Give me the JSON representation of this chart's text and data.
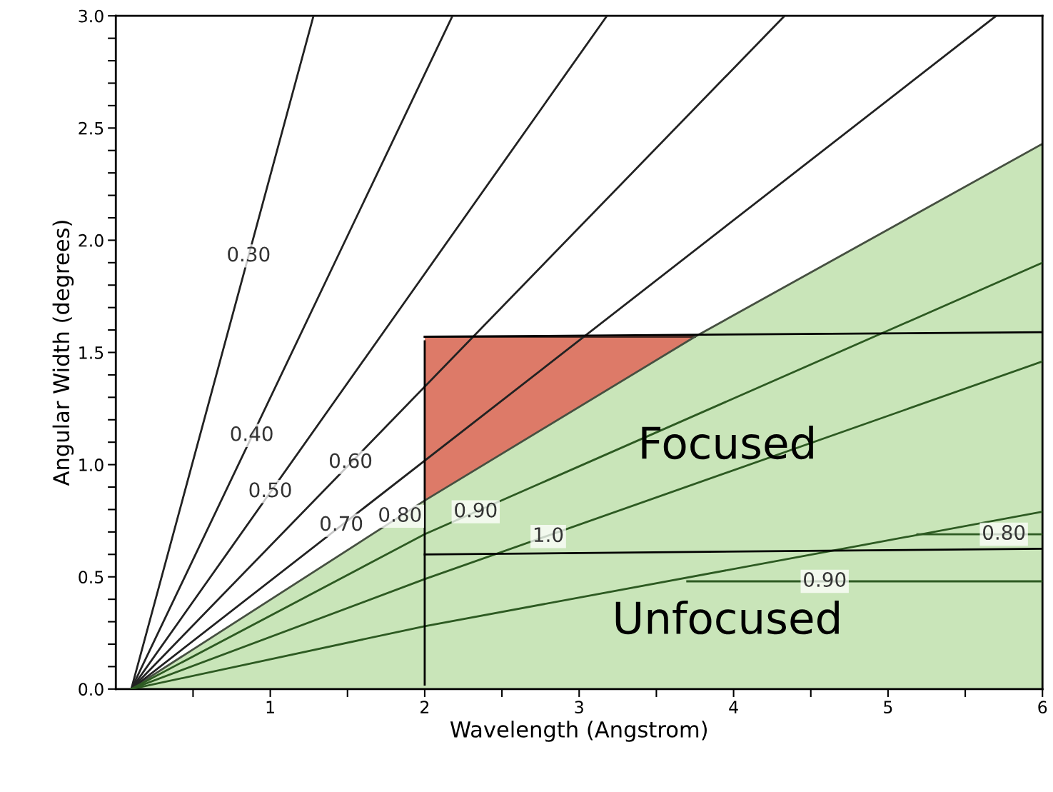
{
  "chart_data": {
    "type": "line",
    "xlabel": "Wavelength (Angstrom)",
    "ylabel": "Angular Width (degrees)",
    "xlim": [
      0,
      6
    ],
    "ylim": [
      0,
      3.0
    ],
    "xticks": [
      {
        "value": 0.5,
        "label": null
      },
      1,
      {
        "value": 1.5,
        "label": null
      },
      2,
      {
        "value": 2.5,
        "label": null
      },
      3,
      {
        "value": 3.5,
        "label": null
      },
      4,
      {
        "value": 4.5,
        "label": null
      },
      5,
      {
        "value": 5.5,
        "label": null
      },
      6
    ],
    "yticks": [
      {
        "value": 0,
        "label": "0.0"
      },
      {
        "value": 0.1,
        "label": null
      },
      {
        "value": 0.2,
        "label": null
      },
      {
        "value": 0.3,
        "label": null
      },
      {
        "value": 0.4,
        "label": null
      },
      0.5,
      {
        "value": 0.6,
        "label": null
      },
      {
        "value": 0.7,
        "label": null
      },
      {
        "value": 0.8,
        "label": null
      },
      {
        "value": 0.9,
        "label": null
      },
      {
        "value": 1.0,
        "label": "1.0"
      },
      {
        "value": 1.1,
        "label": null
      },
      {
        "value": 1.2,
        "label": null
      },
      {
        "value": 1.3,
        "label": null
      },
      {
        "value": 1.4,
        "label": null
      },
      1.5,
      {
        "value": 1.6,
        "label": null
      },
      {
        "value": 1.7,
        "label": null
      },
      {
        "value": 1.8,
        "label": null
      },
      {
        "value": 1.9,
        "label": null
      },
      {
        "value": 2.0,
        "label": "2.0"
      },
      {
        "value": 2.1,
        "label": null
      },
      {
        "value": 2.2,
        "label": null
      },
      {
        "value": 2.3,
        "label": null
      },
      {
        "value": 2.4,
        "label": null
      },
      2.5,
      {
        "value": 2.6,
        "label": null
      },
      {
        "value": 2.7,
        "label": null
      },
      {
        "value": 2.8,
        "label": null
      },
      {
        "value": 2.9,
        "label": null
      },
      {
        "value": 3.0,
        "label": "3.0"
      }
    ],
    "grid": false,
    "legend": false,
    "marker": "none",
    "line_style": "solid",
    "series": [
      {
        "type": "area",
        "color": "#dd7a68",
        "x": [
          2,
          3.75
        ],
        "values": [
          1.57,
          1.57
        ]
      },
      {
        "type": "area",
        "color": "#c9e5b9",
        "x": [
          0.1,
          2,
          3.75,
          6
        ],
        "values": [
          0,
          0.84,
          1.57,
          2.43
        ]
      },
      {
        "color": "#222222",
        "x": [
          0.1,
          1.28
        ],
        "values": [
          0,
          3.0
        ]
      },
      {
        "color": "#222222",
        "x": [
          0.1,
          2.18
        ],
        "values": [
          0,
          3.0
        ]
      },
      {
        "color": "#222222",
        "x": [
          0.1,
          3.18
        ],
        "values": [
          0,
          3.0
        ]
      },
      {
        "color": "#222222",
        "x": [
          0.1,
          4.33
        ],
        "values": [
          0,
          3.0
        ]
      },
      {
        "color": "#222222",
        "x": [
          0.1,
          5.7
        ],
        "values": [
          0,
          3.0
        ]
      },
      {
        "color": "#2d5a22",
        "x": [
          0.1,
          2,
          6
        ],
        "values": [
          0,
          0.69,
          1.9
        ]
      },
      {
        "color": "#2d5a22",
        "x": [
          0.1,
          2,
          6
        ],
        "values": [
          0,
          0.49,
          1.46
        ]
      },
      {
        "color": "#2d5a22",
        "x": [
          0.1,
          2,
          6
        ],
        "values": [
          0,
          0.28,
          0.79
        ]
      },
      {
        "color": "#2d5a22",
        "x": [
          3.7,
          6
        ],
        "values": [
          0.48,
          0.48
        ]
      },
      {
        "color": "#2d5a22",
        "x": [
          5.19,
          6
        ],
        "values": [
          0.69,
          0.69
        ]
      },
      {
        "color": "#000000",
        "x": [
          2,
          6
        ],
        "values": [
          1.57,
          1.59
        ]
      },
      {
        "color": "#000000",
        "x": [
          2,
          6
        ],
        "values": [
          0.6,
          0.625
        ]
      },
      {
        "color": "#000000",
        "x": [
          2,
          2
        ],
        "values": [
          0.02,
          1.55
        ]
      }
    ],
    "annotations": [
      {
        "text": "0.30",
        "x": 0.86,
        "y": 1.93
      },
      {
        "text": "0.40",
        "x": 0.88,
        "y": 1.13
      },
      {
        "text": "0.50",
        "x": 1.0,
        "y": 0.88
      },
      {
        "text": "0.60",
        "x": 1.52,
        "y": 1.01
      },
      {
        "text": "0.70",
        "x": 1.46,
        "y": 0.73
      },
      {
        "text": "0.80",
        "x": 1.84,
        "y": 0.77
      },
      {
        "text": "0.90",
        "x": 2.33,
        "y": 0.79
      },
      {
        "text": "1.0",
        "x": 2.8,
        "y": 0.68
      },
      {
        "text": "0.80",
        "x": 5.75,
        "y": 0.69
      },
      {
        "text": "0.90",
        "x": 4.59,
        "y": 0.48
      },
      "Focused",
      "Unfocused"
    ]
  }
}
